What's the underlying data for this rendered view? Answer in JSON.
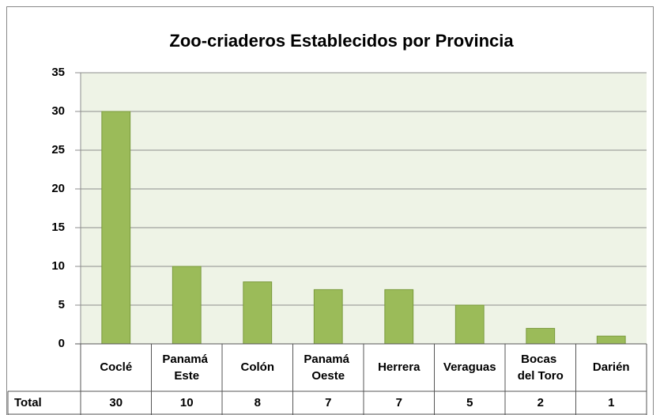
{
  "chart_data": {
    "type": "bar",
    "title": "Zoo-criaderos Establecidos por Provincia",
    "categories": [
      "Coclé",
      "Panamá Este",
      "Colón",
      "Panamá Oeste",
      "Herrera",
      "Veraguas",
      "Bocas del Toro",
      "Darién"
    ],
    "series_name": "Total",
    "values": [
      30,
      10,
      8,
      7,
      7,
      5,
      2,
      1
    ],
    "color": "#9bbb59",
    "ylim": [
      0,
      35
    ],
    "yticks": [
      0,
      5,
      10,
      15,
      20,
      25,
      30,
      35
    ],
    "grid": true
  }
}
